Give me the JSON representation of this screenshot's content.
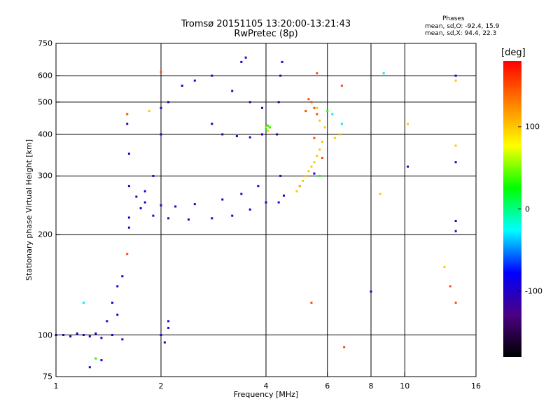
{
  "header": {
    "title": "Tromsø 20151105 13:20:00-13:21:43",
    "subtitle": "RwPretec (8p)",
    "phases_title": "Phases",
    "phase_o": "mean, sd,O: -92.4, 15.9",
    "phase_x": "mean, sd,X:  94.4, 22.3"
  },
  "chart_data": {
    "type": "scatter",
    "title": "Tromsø 20151105 13:20:00-13:21:43",
    "subtitle": "RwPretec (8p)",
    "xlabel": "Frequency [MHz]",
    "ylabel": "Stationary phase Virtual Height [km]",
    "x_scale": "log",
    "y_scale": "log",
    "xlim": [
      1,
      16
    ],
    "ylim": [
      75,
      750
    ],
    "x_ticks": [
      1,
      2,
      4,
      6,
      8,
      10,
      16
    ],
    "x_tick_labels": [
      "1",
      "2",
      "4",
      "6",
      "8",
      "10",
      "16"
    ],
    "y_ticks": [
      75,
      100,
      200,
      300,
      400,
      500,
      600,
      750
    ],
    "y_tick_labels": [
      "75",
      "100",
      "200",
      "300",
      "400",
      "500",
      "600",
      "750"
    ],
    "grid": true,
    "colorbar": {
      "unit": "[deg]",
      "range": [
        -180,
        180
      ],
      "ticks": [
        100,
        0,
        -100
      ],
      "tick_labels": [
        "100",
        "0",
        "-100"
      ],
      "colors": [
        "#000000",
        "#4b0082",
        "#0000ff",
        "#00ffff",
        "#00ff00",
        "#ffff00",
        "#ff8000",
        "#ff0000"
      ]
    },
    "series": [
      {
        "phase_deg": -100,
        "points": [
          [
            1.0,
            100
          ],
          [
            1.05,
            100
          ],
          [
            1.1,
            99
          ],
          [
            1.15,
            101
          ],
          [
            1.2,
            100
          ],
          [
            1.25,
            99
          ],
          [
            1.3,
            101
          ],
          [
            1.35,
            98
          ],
          [
            1.4,
            110
          ],
          [
            1.45,
            125
          ],
          [
            1.5,
            140
          ],
          [
            1.55,
            150
          ],
          [
            1.5,
            115
          ],
          [
            1.45,
            100
          ],
          [
            1.55,
            97
          ],
          [
            1.35,
            84
          ],
          [
            1.25,
            80
          ],
          [
            1.6,
            430
          ],
          [
            1.62,
            350
          ],
          [
            1.62,
            280
          ],
          [
            1.62,
            225
          ],
          [
            1.62,
            210
          ],
          [
            1.7,
            260
          ],
          [
            1.8,
            270
          ],
          [
            1.9,
            300
          ],
          [
            2.0,
            400
          ],
          [
            2.0,
            480
          ],
          [
            2.1,
            500
          ],
          [
            2.3,
            560
          ],
          [
            2.5,
            580
          ],
          [
            2.8,
            600
          ],
          [
            3.2,
            540
          ],
          [
            3.6,
            500
          ],
          [
            3.9,
            480
          ],
          [
            1.75,
            240
          ],
          [
            1.9,
            228
          ],
          [
            2.1,
            224
          ],
          [
            2.4,
            222
          ],
          [
            2.8,
            224
          ],
          [
            3.2,
            228
          ],
          [
            3.6,
            238
          ],
          [
            4.0,
            250
          ],
          [
            4.5,
            262
          ],
          [
            5.0,
            280
          ],
          [
            5.5,
            305
          ],
          [
            1.8,
            250
          ],
          [
            2.0,
            245
          ],
          [
            2.2,
            243
          ],
          [
            2.5,
            247
          ],
          [
            3.0,
            255
          ],
          [
            3.4,
            265
          ],
          [
            3.8,
            280
          ],
          [
            3.0,
            400
          ],
          [
            3.3,
            395
          ],
          [
            3.6,
            392
          ],
          [
            3.9,
            400
          ],
          [
            2.8,
            430
          ],
          [
            3.4,
            660
          ],
          [
            3.5,
            680
          ],
          [
            4.3,
            400
          ],
          [
            4.35,
            500
          ],
          [
            4.4,
            600
          ],
          [
            4.45,
            660
          ],
          [
            4.4,
            300
          ],
          [
            4.35,
            250
          ],
          [
            2.0,
            100
          ],
          [
            2.1,
            105
          ],
          [
            2.05,
            95
          ],
          [
            2.1,
            110
          ],
          [
            8.0,
            135
          ],
          [
            14.0,
            600
          ],
          [
            14.0,
            220
          ],
          [
            14.0,
            205
          ],
          [
            10.2,
            320
          ],
          [
            14.0,
            330
          ]
        ]
      },
      {
        "phase_deg": 100,
        "points": [
          [
            4.9,
            270
          ],
          [
            5.0,
            280
          ],
          [
            5.1,
            290
          ],
          [
            5.2,
            300
          ],
          [
            5.3,
            310
          ],
          [
            5.4,
            320
          ],
          [
            5.5,
            330
          ],
          [
            5.6,
            345
          ],
          [
            5.7,
            360
          ],
          [
            5.8,
            380
          ],
          [
            5.9,
            420
          ],
          [
            5.6,
            480
          ],
          [
            5.7,
            440
          ],
          [
            4.0,
            420
          ],
          [
            4.1,
            420
          ],
          [
            4.05,
            410
          ],
          [
            1.85,
            470
          ],
          [
            6.3,
            390
          ],
          [
            6.5,
            400
          ],
          [
            8.5,
            265
          ],
          [
            13.0,
            160
          ],
          [
            10.2,
            430
          ],
          [
            14.0,
            370
          ],
          [
            14.0,
            580
          ]
        ]
      },
      {
        "phase_deg": 150,
        "points": [
          [
            5.3,
            510
          ],
          [
            5.4,
            500
          ],
          [
            5.5,
            480
          ],
          [
            5.6,
            460
          ],
          [
            5.2,
            470
          ],
          [
            5.5,
            390
          ],
          [
            5.8,
            340
          ],
          [
            6.6,
            560
          ],
          [
            6.7,
            92
          ],
          [
            5.4,
            125
          ],
          [
            13.5,
            140
          ],
          [
            14.0,
            125
          ],
          [
            1.6,
            175
          ],
          [
            1.6,
            460
          ],
          [
            2.0,
            615
          ],
          [
            5.6,
            610
          ]
        ]
      },
      {
        "phase_deg": 30,
        "points": [
          [
            4.0,
            415
          ],
          [
            4.05,
            425
          ],
          [
            4.1,
            420
          ],
          [
            5.7,
            300
          ],
          [
            6.0,
            470
          ],
          [
            1.3,
            85
          ]
        ]
      },
      {
        "phase_deg": -30,
        "points": [
          [
            6.2,
            460
          ],
          [
            6.6,
            430
          ],
          [
            8.7,
            610
          ],
          [
            1.2,
            125
          ]
        ]
      }
    ]
  }
}
